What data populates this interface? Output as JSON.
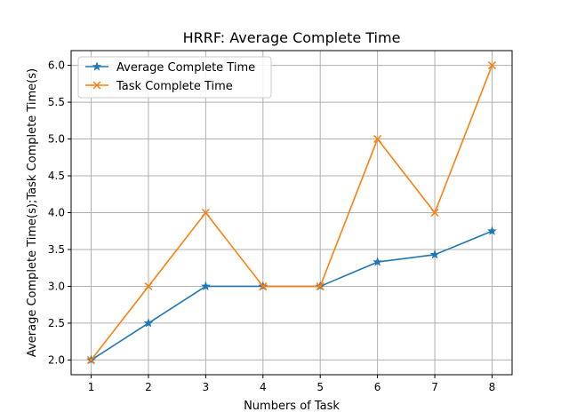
{
  "chart_data": {
    "type": "line",
    "title": "HRRF: Average Complete Time",
    "xlabel": "Numbers of Task",
    "ylabel": "Average Complete Time(s);Task Complete Time(s)",
    "x": [
      1,
      2,
      3,
      4,
      5,
      6,
      7,
      8
    ],
    "xlim": [
      0.65,
      8.35
    ],
    "ylim": [
      1.8,
      6.2
    ],
    "xticks": [
      "1",
      "2",
      "3",
      "4",
      "5",
      "6",
      "7",
      "8"
    ],
    "yticks": [
      "2.0",
      "2.5",
      "3.0",
      "3.5",
      "4.0",
      "4.5",
      "5.0",
      "5.5",
      "6.0"
    ],
    "grid": true,
    "legend_position": "top-left",
    "series": [
      {
        "name": "Average Complete Time",
        "values": [
          2.0,
          2.5,
          3.0,
          3.0,
          3.0,
          3.33,
          3.43,
          3.75
        ],
        "color": "#1f77b4",
        "marker": "star"
      },
      {
        "name": "Task Complete Time",
        "values": [
          2.0,
          3.0,
          4.0,
          3.0,
          3.0,
          5.0,
          4.0,
          6.0
        ],
        "color": "#ff7f0e",
        "marker": "x"
      }
    ]
  }
}
